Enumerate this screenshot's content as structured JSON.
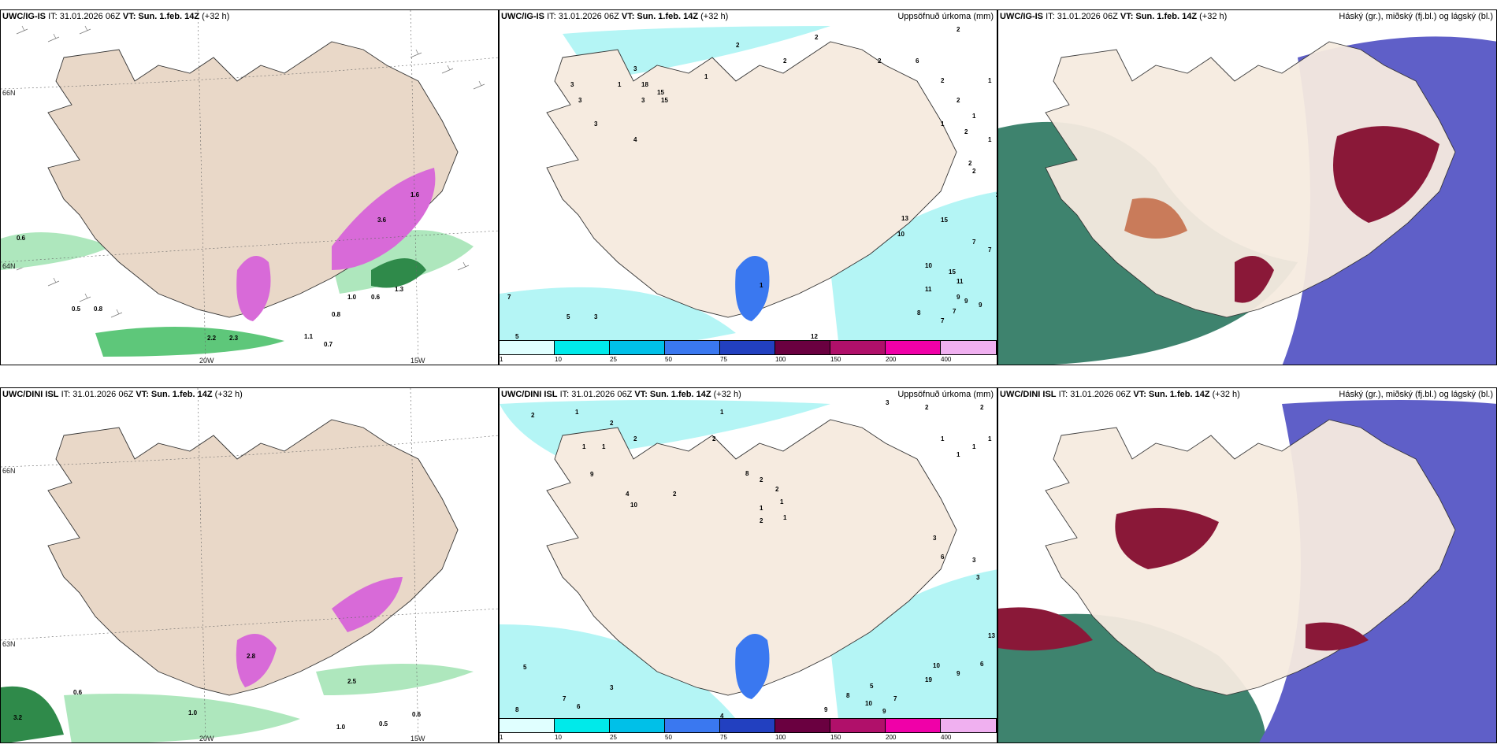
{
  "rows": [
    {
      "model": "UWC/IG-IS",
      "it": "IT: 31.01.2026 06Z",
      "vt_label": "VT:",
      "vt": "Sun. 1.feb. 14Z",
      "lead": "(+32 h)",
      "lead_wrapped": "h)",
      "wind_values": [
        "0.6",
        "0.5",
        "0.8",
        "2.2",
        "2.3",
        "1.1",
        "0.7",
        "0.8",
        "1.0",
        "0.6",
        "3.6",
        "1.3",
        "1.6"
      ],
      "precip_values": [
        "2",
        "2",
        "2",
        "3",
        "2",
        "3",
        "3",
        "4",
        "2",
        "6",
        "1",
        "1",
        "1",
        "2",
        "2",
        "1",
        "2",
        "3",
        "3",
        "15",
        "18",
        "15",
        "1",
        "2",
        "2",
        "2",
        "1",
        "13",
        "15",
        "10",
        "11",
        "10",
        "15",
        "7",
        "7",
        "5",
        "3",
        "5",
        "7",
        "9",
        "8",
        "7",
        "7",
        "9",
        "11",
        "9",
        "12",
        "1"
      ]
    },
    {
      "model": "UWC/DINI ISL",
      "it": "IT: 31.01.2026 06Z",
      "vt_label": "VT:",
      "vt": "Sun. 1.feb. 14Z",
      "lead": "(+32 h)",
      "wind_values": [
        "0.6",
        "1.0",
        "1.0",
        "0.5",
        "0.6",
        "2.8",
        "2.5",
        "3.2"
      ],
      "precip_values": [
        "2",
        "1",
        "2",
        "1",
        "2",
        "1",
        "9",
        "4",
        "10",
        "2",
        "2",
        "8",
        "2",
        "2",
        "1",
        "1",
        "2",
        "1",
        "1",
        "3",
        "2",
        "2",
        "3",
        "3",
        "13",
        "3",
        "6",
        "1",
        "1",
        "1",
        "1",
        "5",
        "10",
        "9",
        "6",
        "19",
        "7",
        "5",
        "7",
        "6",
        "4",
        "3",
        "8",
        "9",
        "8",
        "10",
        "9"
      ]
    }
  ],
  "panel_titles": {
    "precip": "Uppsöfnuð úrkoma (mm)",
    "cloud": "Háský (gr.), miðský (fj.bl.) og lágský (bl.)"
  },
  "axis_labels": {
    "lat_66": "66N",
    "lat_64": "64N",
    "lat_63": "63N",
    "lon_20": "20W",
    "lon_15": "15W"
  },
  "legend": {
    "labels": [
      "1",
      "10",
      "25",
      "50",
      "75",
      "100",
      "150",
      "200",
      "400"
    ],
    "colors": [
      "#e0ffff",
      "#00eaea",
      "#00c0e8",
      "#3a78f0",
      "#2240c0",
      "#6a0040",
      "#b0106a",
      "#f000a8",
      "#f0b0f0"
    ]
  },
  "colors": {
    "land": "#f6ebe0",
    "land_left": "#e9d8c8",
    "precip_shade": "#b4f5f5",
    "sea": "#ffffff",
    "cloud_low": "#5f5fc8",
    "cloud_mid": "#1c6d55",
    "cloud_high": "#8a1838",
    "snow": "#d86ad8",
    "green": "#5ec77a"
  }
}
